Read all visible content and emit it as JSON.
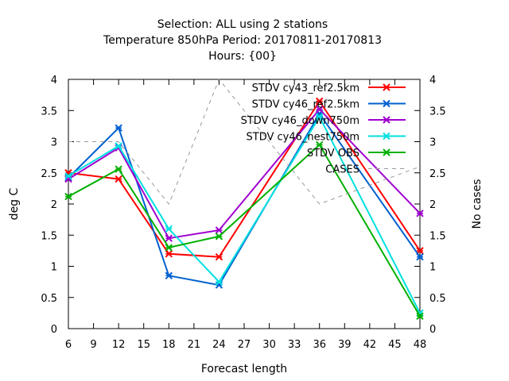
{
  "chart_data": {
    "type": "line",
    "title_lines": [
      "Selection: ALL using     2 stations",
      "Temperature 850hPa   Period: 20170811-20170813",
      "Hours: {00}"
    ],
    "xlabel": "Forecast length",
    "ylabel": "deg C",
    "y2label": "No cases",
    "xlim": [
      6,
      48
    ],
    "ylim": [
      0,
      4
    ],
    "y2lim": [
      0,
      4
    ],
    "xticks": [
      6,
      9,
      12,
      15,
      18,
      21,
      24,
      27,
      30,
      33,
      36,
      39,
      42,
      45,
      48
    ],
    "yticks": [
      0,
      0.5,
      1,
      1.5,
      2,
      2.5,
      3,
      3.5,
      4
    ],
    "ytick_labels": [
      "0",
      "0.5",
      "1",
      "1.5",
      "2",
      "2.5",
      "3",
      "3.5",
      "4"
    ],
    "y2ticks": [
      0,
      0.5,
      1,
      1.5,
      2,
      2.5,
      3,
      3.5,
      4
    ],
    "y2tick_labels": [
      "0",
      "0.5",
      "1",
      "1.5",
      "2",
      "2.5",
      "3",
      "3.5",
      "4"
    ],
    "grid": false,
    "legend_position": "top-right",
    "x": [
      6,
      12,
      18,
      24,
      36,
      48
    ],
    "series": [
      {
        "name": "STDV cy43_ref2.5km",
        "color": "#ff0000",
        "marker": "x",
        "values": [
          2.5,
          2.4,
          1.2,
          1.15,
          3.65,
          1.25
        ]
      },
      {
        "name": "STDV cy46_ref2.5km",
        "color": "#0060d0",
        "marker": "x",
        "values": [
          2.42,
          3.22,
          0.85,
          0.7,
          3.45,
          1.15
        ]
      },
      {
        "name": "STDV cy46_down750m",
        "color": "#a000d0",
        "marker": "x",
        "values": [
          2.4,
          2.9,
          1.45,
          1.58,
          3.52,
          1.85
        ]
      },
      {
        "name": "STDV cy46_nest750m",
        "color": "#00e0e0",
        "marker": "x",
        "values": [
          2.45,
          2.93,
          1.6,
          0.75,
          3.4,
          0.25
        ]
      },
      {
        "name": "STDV OBS",
        "color": "#00b000",
        "marker": "x",
        "values": [
          2.12,
          2.56,
          1.3,
          1.48,
          2.95,
          0.2
        ]
      },
      {
        "name": "CASES",
        "color": "#999999",
        "dashed": true,
        "axis": "y2",
        "values": [
          3.0,
          3.0,
          2.0,
          4.0,
          2.0,
          2.6
        ]
      }
    ]
  }
}
